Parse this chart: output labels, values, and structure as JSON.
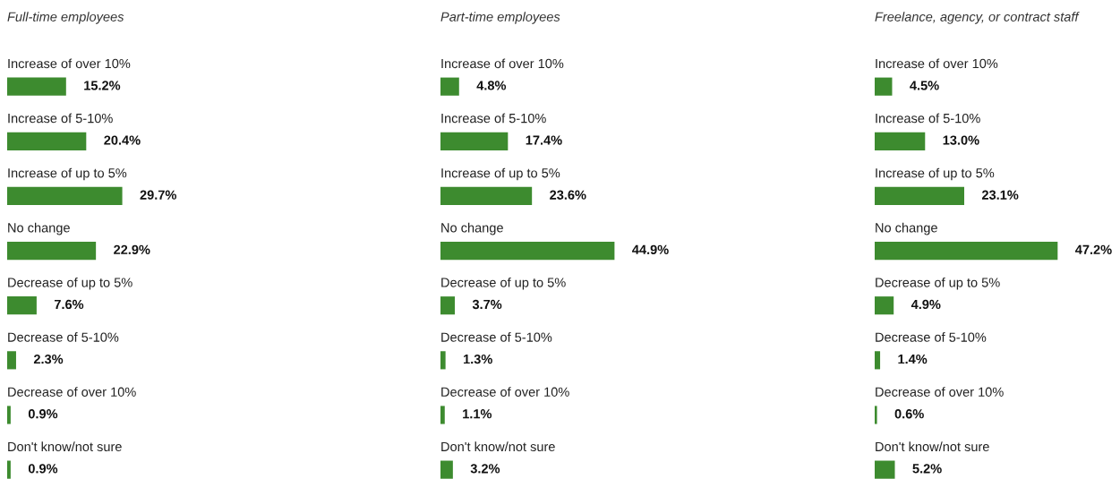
{
  "chart_data": [
    {
      "type": "bar",
      "orientation": "horizontal",
      "title": "Full-time employees",
      "categories": [
        "Increase of over 10%",
        "Increase of 5-10%",
        "Increase of up to 5%",
        "No change",
        "Decrease of up to 5%",
        "Decrease of 5-10%",
        "Decrease of over 10%",
        "Don't know/not sure"
      ],
      "values": [
        15.2,
        20.4,
        29.7,
        22.9,
        7.6,
        2.3,
        0.9,
        0.9
      ],
      "value_labels": [
        "15.2%",
        "20.4%",
        "29.7%",
        "22.9%",
        "7.6%",
        "2.3%",
        "0.9%",
        "0.9%"
      ],
      "color": "#3d8b2f"
    },
    {
      "type": "bar",
      "orientation": "horizontal",
      "title": "Part-time employees",
      "categories": [
        "Increase of over 10%",
        "Increase of 5-10%",
        "Increase of up to 5%",
        "No change",
        "Decrease of up to 5%",
        "Decrease of 5-10%",
        "Decrease of over 10%",
        "Don't know/not sure"
      ],
      "values": [
        4.8,
        17.4,
        23.6,
        44.9,
        3.7,
        1.3,
        1.1,
        3.2
      ],
      "value_labels": [
        "4.8%",
        "17.4%",
        "23.6%",
        "44.9%",
        "3.7%",
        "1.3%",
        "1.1%",
        "3.2%"
      ],
      "color": "#3d8b2f"
    },
    {
      "type": "bar",
      "orientation": "horizontal",
      "title": "Freelance, agency, or contract staff",
      "categories": [
        "Increase of over 10%",
        "Increase of 5-10%",
        "Increase of up to 5%",
        "No change",
        "Decrease of up to 5%",
        "Decrease of 5-10%",
        "Decrease of over 10%",
        "Don't know/not sure"
      ],
      "values": [
        4.5,
        13.0,
        23.1,
        47.2,
        4.9,
        1.4,
        0.6,
        5.2
      ],
      "value_labels": [
        "4.5%",
        "13.0%",
        "23.1%",
        "47.2%",
        "4.9%",
        "1.4%",
        "0.6%",
        "5.2%"
      ],
      "color": "#3d8b2f"
    }
  ]
}
